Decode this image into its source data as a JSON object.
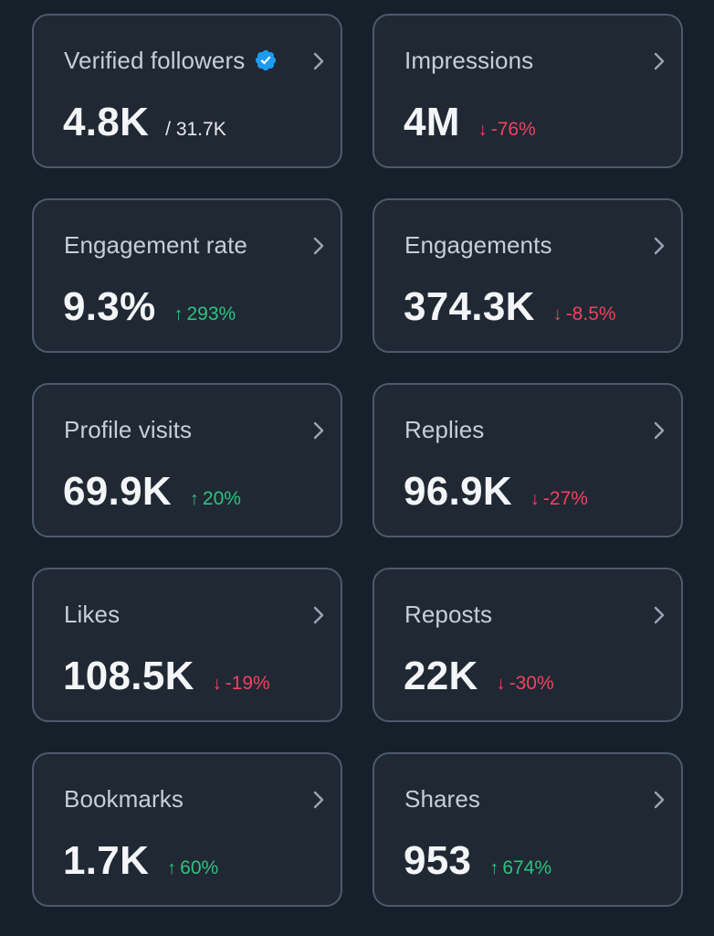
{
  "cards": [
    {
      "title": "Verified followers",
      "value": "4.8K",
      "total": "/ 31.7K",
      "verified": true
    },
    {
      "title": "Impressions",
      "value": "4M",
      "change": "-76%",
      "direction": "down"
    },
    {
      "title": "Engagement rate",
      "value": "9.3%",
      "change": "293%",
      "direction": "up"
    },
    {
      "title": "Engagements",
      "value": "374.3K",
      "change": "-8.5%",
      "direction": "down"
    },
    {
      "title": "Profile visits",
      "value": "69.9K",
      "change": "20%",
      "direction": "up"
    },
    {
      "title": "Replies",
      "value": "96.9K",
      "change": "-27%",
      "direction": "down"
    },
    {
      "title": "Likes",
      "value": "108.5K",
      "change": "-19%",
      "direction": "down"
    },
    {
      "title": "Reposts",
      "value": "22K",
      "change": "-30%",
      "direction": "down"
    },
    {
      "title": "Bookmarks",
      "value": "1.7K",
      "change": "60%",
      "direction": "up"
    },
    {
      "title": "Shares",
      "value": "953",
      "change": "674%",
      "direction": "up"
    }
  ],
  "icons": {
    "chevron": "chevron-right-icon",
    "verified": "verified-badge-icon",
    "up": "arrow-up-icon",
    "down": "arrow-down-icon"
  },
  "colors": {
    "background": "#15202b",
    "card": "#202834",
    "border": "#4d5a6a",
    "up": "#2ec27e",
    "down": "#f0435d",
    "verified": "#1d9bf0"
  }
}
